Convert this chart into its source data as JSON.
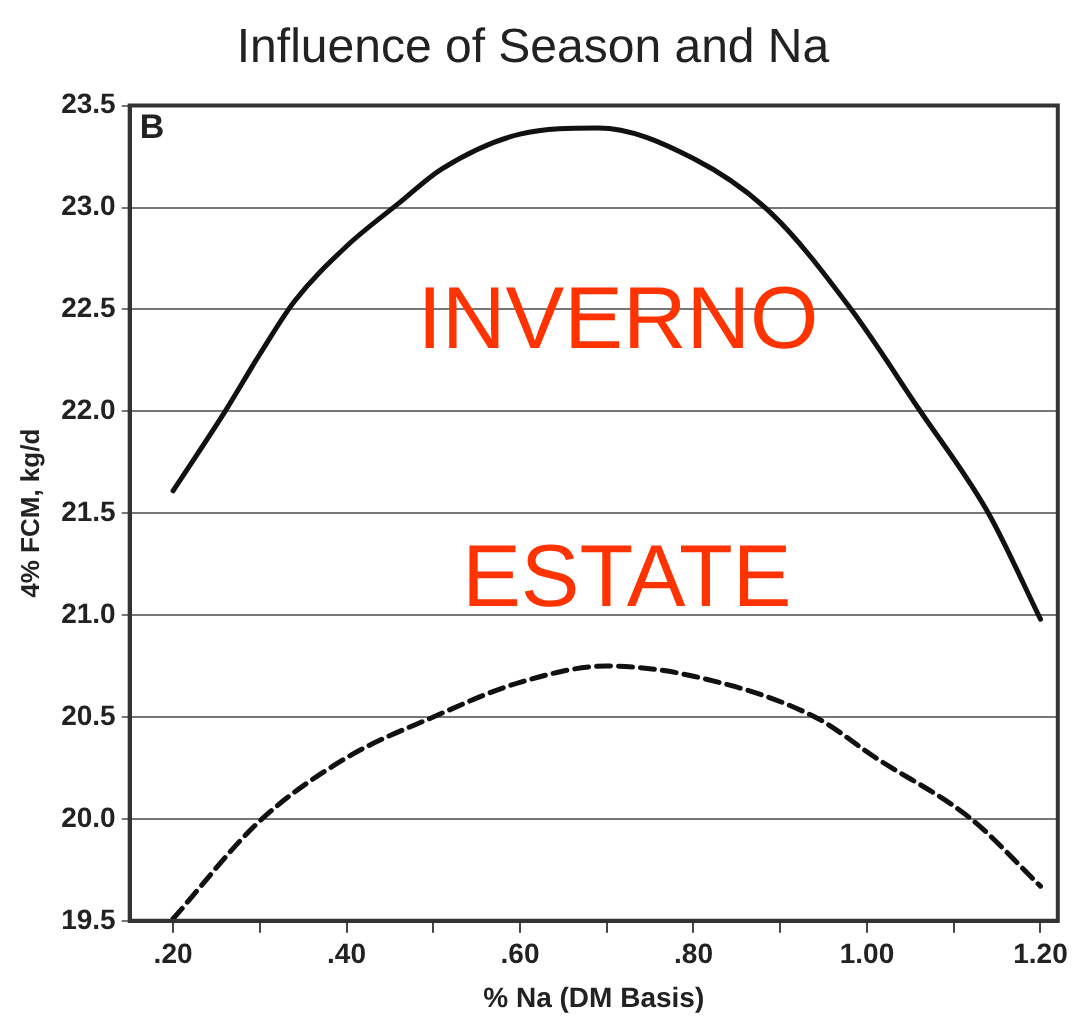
{
  "chart_data": {
    "type": "line",
    "title": "Influence of Season and Na",
    "xlabel": "% Na (DM Basis)",
    "ylabel": "4% FCM, kg/d",
    "annotations": [
      "B"
    ],
    "series": [
      {
        "name": "INVERNO",
        "color": "#111111",
        "line_style": "solid",
        "x": [
          0.2,
          0.26,
          0.3,
          0.34,
          0.4,
          0.46,
          0.51,
          0.6,
          0.69,
          0.8,
          0.89,
          0.98,
          1.06,
          1.14,
          1.2
        ],
        "values": [
          21.61,
          22.0,
          22.28,
          22.54,
          22.81,
          23.02,
          23.19,
          23.36,
          23.39,
          23.24,
          22.97,
          22.51,
          22.01,
          21.5,
          20.98
        ]
      },
      {
        "name": "ESTATE",
        "color": "#111111",
        "line_style": "dashed",
        "x": [
          0.2,
          0.3,
          0.4,
          0.5,
          0.6,
          0.7,
          0.8,
          0.94,
          1.01,
          1.12,
          1.2
        ],
        "values": [
          19.51,
          19.99,
          20.3,
          20.5,
          20.67,
          20.75,
          20.7,
          20.5,
          20.3,
          20.0,
          19.67
        ]
      }
    ],
    "xlim": [
      0.15,
      1.22
    ],
    "xticks": [
      {
        "value": 0.2,
        "label": ".20"
      },
      {
        "value": 0.3,
        "label": null
      },
      {
        "value": 0.4,
        "label": ".40"
      },
      {
        "value": 0.5,
        "label": null
      },
      {
        "value": 0.6,
        "label": ".60"
      },
      {
        "value": 0.7,
        "label": null
      },
      {
        "value": 0.8,
        "label": ".80"
      },
      {
        "value": 0.9,
        "label": null
      },
      {
        "value": 1.0,
        "label": "1.00"
      },
      {
        "value": 1.1,
        "label": null
      },
      {
        "value": 1.2,
        "label": "1.20"
      }
    ],
    "ylim": [
      19.5,
      23.5
    ],
    "yticks": [
      {
        "value": 19.5,
        "label": "19.5"
      },
      {
        "value": 20.0,
        "label": "20.0"
      },
      {
        "value": 20.5,
        "label": "20.5"
      },
      {
        "value": 21.0,
        "label": "21.0"
      },
      {
        "value": 21.5,
        "label": "21.5"
      },
      {
        "value": 22.0,
        "label": "22.0"
      },
      {
        "value": 22.5,
        "label": "22.5"
      },
      {
        "value": 23.0,
        "label": "23.0"
      },
      {
        "value": 23.5,
        "label": "23.5"
      }
    ],
    "grid": "y",
    "legend": false,
    "marker": "none"
  }
}
